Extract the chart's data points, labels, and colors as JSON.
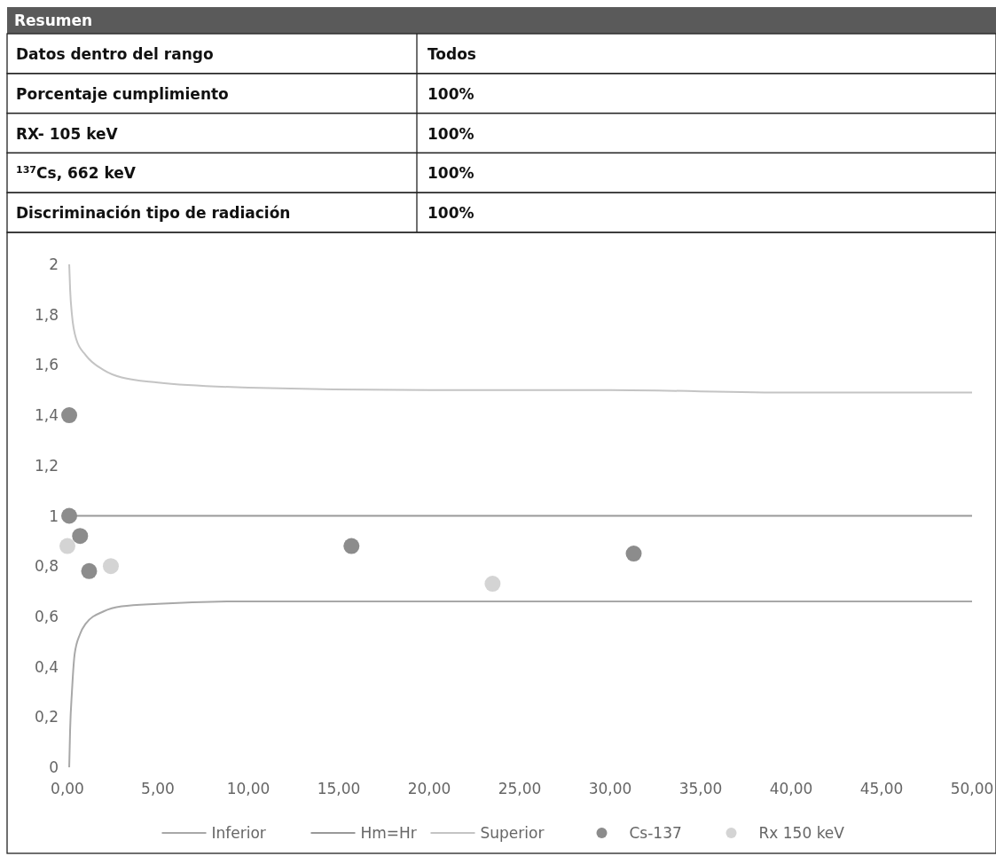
{
  "chart_data": [
    {
      "type": "other",
      "title": "Resumen",
      "categories": [
        "Datos dentro del rango",
        "Porcentaje cumplimiento",
        "RX- 105 keV",
        "$^{137}$Cs, 662 keV",
        "Discriminación tipo de radiación"
      ],
      "value_labels": [
        "Todos",
        "100%",
        "100%",
        "100%",
        "100%"
      ]
    },
    {
      "type": "line",
      "xlim": [
        0,
        50
      ],
      "ylim": [
        0,
        2
      ],
      "legend": "bottom",
      "grid": false,
      "xticks": [
        {
          "value": 0,
          "label": "0,00"
        },
        {
          "value": 5,
          "label": "5,00"
        },
        {
          "value": 10,
          "label": "10,00"
        },
        {
          "value": 15,
          "label": "15,00"
        },
        {
          "value": 20,
          "label": "20,00"
        },
        {
          "value": 25,
          "label": "25,00"
        },
        {
          "value": 30,
          "label": "30,00"
        },
        {
          "value": 35,
          "label": "35,00"
        },
        {
          "value": 40,
          "label": "40,00"
        },
        {
          "value": 45,
          "label": "45,00"
        },
        {
          "value": 50,
          "label": "50,00"
        }
      ],
      "yticks": [
        0,
        {
          "value": 0.2,
          "label": "0,2"
        },
        {
          "value": 0.4,
          "label": "0,4"
        },
        {
          "value": 0.6,
          "label": "0,6"
        },
        {
          "value": 0.8,
          "label": "0,8"
        },
        1,
        {
          "value": 1.2,
          "label": "1,2"
        },
        {
          "value": 1.4,
          "label": "1,4"
        },
        {
          "value": 1.6,
          "label": "1,6"
        },
        {
          "value": 1.8,
          "label": "1,8"
        },
        2
      ],
      "series": [
        {
          "name": "Inferior",
          "type": "line",
          "color": "#a8a8a8",
          "x": [
            0.1,
            0.15,
            0.25,
            0.4,
            0.7,
            1,
            2,
            3,
            5,
            10,
            20,
            30,
            40,
            50
          ],
          "values": [
            0,
            0.15,
            0.3,
            0.45,
            0.53,
            0.57,
            0.62,
            0.64,
            0.65,
            0.66,
            0.66,
            0.66,
            0.66,
            0.66
          ]
        },
        {
          "name": "Hm=Hr",
          "type": "line",
          "color": "#999999",
          "x": [
            0.1,
            50
          ],
          "values": [
            1,
            1
          ]
        },
        {
          "name": "Superior",
          "type": "line",
          "color": "#c4c4c4",
          "x": [
            0.1,
            0.15,
            0.25,
            0.5,
            1,
            2,
            3,
            5,
            10,
            20,
            30,
            40,
            50
          ],
          "values": [
            2,
            1.9,
            1.8,
            1.7,
            1.64,
            1.58,
            1.55,
            1.53,
            1.51,
            1.5,
            1.5,
            1.49,
            1.49
          ]
        },
        {
          "name": "Cs-137",
          "type": "scatter",
          "marker": "circle",
          "color": "#8c8c8c",
          "x": [
            0.1,
            0.1,
            0.7,
            1.2,
            15.7,
            31.3
          ],
          "values": [
            1.4,
            1,
            0.92,
            0.78,
            0.88,
            0.85
          ]
        },
        {
          "name": "Rx 150 keV",
          "type": "scatter",
          "marker": "circle",
          "color": "#d4d4d4",
          "x": [
            0,
            2.4,
            23.5
          ],
          "values": [
            0.88,
            0.8,
            0.73
          ]
        }
      ]
    }
  ]
}
